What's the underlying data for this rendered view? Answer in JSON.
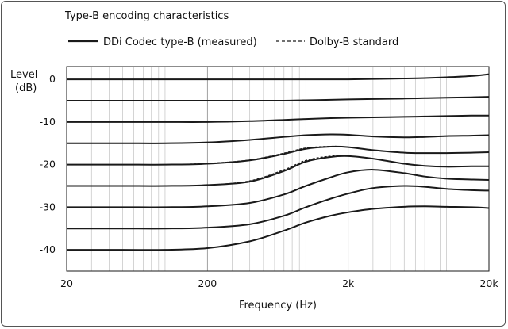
{
  "chart_data": {
    "type": "line",
    "title": "Type-B encoding characteristics",
    "xlabel": "Frequency (Hz)",
    "ylabel_line1": "Level",
    "ylabel_line2": "(dB)",
    "xscale": "log",
    "xlim": [
      20,
      20000
    ],
    "ylim": [
      -45,
      3
    ],
    "grid": true,
    "legend_placement": "top-left",
    "x_ticks": [
      {
        "value": 20,
        "label": "20"
      },
      {
        "value": 200,
        "label": "200"
      },
      {
        "value": 2000,
        "label": "2k"
      },
      {
        "value": 20000,
        "label": "20k"
      }
    ],
    "y_ticks": [
      {
        "value": 0,
        "label": "0"
      },
      {
        "value": -10,
        "label": "-10"
      },
      {
        "value": -20,
        "label": "-20"
      },
      {
        "value": -30,
        "label": "-30"
      },
      {
        "value": -40,
        "label": "-40"
      }
    ],
    "legend": [
      {
        "label": "DDi Codec type-B (measured)",
        "style": "solid"
      },
      {
        "label": "Dolby-B standard",
        "style": "dashed"
      }
    ],
    "x": [
      20,
      50,
      100,
      200,
      400,
      700,
      1000,
      1500,
      2000,
      3000,
      5000,
      7000,
      10000,
      15000,
      20000
    ],
    "series": [
      {
        "style": "solid",
        "values": [
          0,
          0,
          0,
          0,
          0,
          0,
          0,
          0,
          0,
          0.1,
          0.2,
          0.3,
          0.5,
          0.8,
          1.2
        ]
      },
      {
        "style": "solid",
        "values": [
          -5,
          -5,
          -5,
          -5,
          -5,
          -5,
          -4.9,
          -4.8,
          -4.7,
          -4.6,
          -4.5,
          -4.4,
          -4.3,
          -4.2,
          -4.1
        ]
      },
      {
        "style": "solid",
        "values": [
          -10,
          -10,
          -10,
          -10,
          -9.8,
          -9.5,
          -9.3,
          -9.1,
          -9.0,
          -8.9,
          -8.8,
          -8.7,
          -8.6,
          -8.5,
          -8.5
        ]
      },
      {
        "style": "solid",
        "values": [
          -15,
          -15,
          -15,
          -14.8,
          -14.2,
          -13.5,
          -13.1,
          -12.9,
          -13.0,
          -13.4,
          -13.6,
          -13.5,
          -13.3,
          -13.2,
          -13.1
        ]
      },
      {
        "style": "solid",
        "values": [
          -20,
          -20,
          -20,
          -19.8,
          -19.0,
          -17.5,
          -16.3,
          -15.8,
          -15.9,
          -16.6,
          -17.2,
          -17.3,
          -17.3,
          -17.2,
          -17.1
        ]
      },
      {
        "style": "solid",
        "values": [
          -25,
          -25,
          -25,
          -24.8,
          -24.0,
          -21.5,
          -19.3,
          -18.2,
          -18.0,
          -18.6,
          -19.8,
          -20.3,
          -20.5,
          -20.4,
          -20.4
        ]
      },
      {
        "style": "solid",
        "values": [
          -30,
          -30,
          -30,
          -29.8,
          -29.0,
          -27.0,
          -25.0,
          -23.0,
          -21.8,
          -21.2,
          -22.0,
          -22.8,
          -23.3,
          -23.5,
          -23.6
        ]
      },
      {
        "style": "solid",
        "values": [
          -35,
          -35,
          -35,
          -34.8,
          -34.0,
          -32.0,
          -30.0,
          -28.0,
          -26.8,
          -25.5,
          -25.0,
          -25.2,
          -25.7,
          -26.0,
          -26.1
        ]
      },
      {
        "style": "solid",
        "values": [
          -40,
          -40,
          -40,
          -39.6,
          -38.0,
          -35.5,
          -33.6,
          -32.0,
          -31.2,
          -30.4,
          -29.9,
          -29.8,
          -29.9,
          -30.0,
          -30.2
        ]
      },
      {
        "style": "dashed",
        "values": [
          -20,
          -20,
          -20,
          -19.7,
          -18.9,
          -17.3,
          -16.1,
          -15.7,
          -15.9,
          -16.6,
          -17.2,
          -17.3,
          -17.3,
          -17.2,
          -17.1
        ]
      },
      {
        "style": "dashed",
        "values": [
          -25,
          -25,
          -25,
          -24.8,
          -23.8,
          -21.2,
          -19.0,
          -18.0,
          -18.0,
          -18.6,
          -19.8,
          -20.3,
          -20.5,
          -20.4,
          -20.4
        ]
      }
    ],
    "colors": {
      "line": "#1a1a1a",
      "grid": "#b8b8b8",
      "frame": "#555555"
    }
  }
}
